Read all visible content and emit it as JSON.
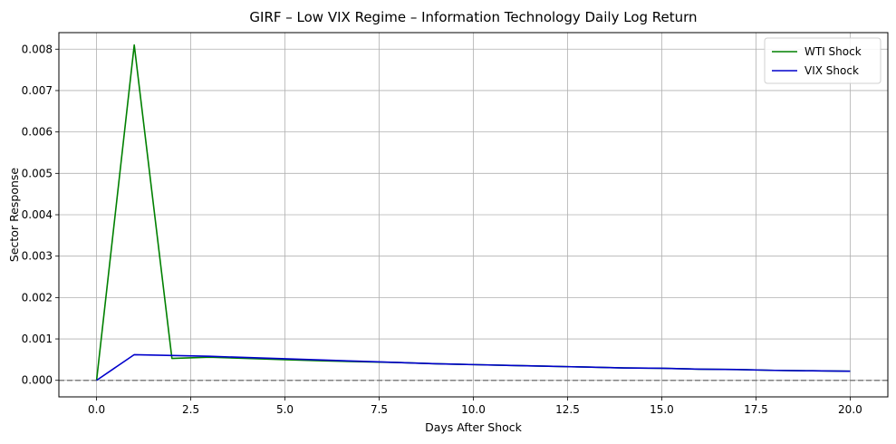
{
  "chart_data": {
    "type": "line",
    "title": "GIRF – Low VIX Regime – Information Technology Daily Log Return",
    "xlabel": "Days After Shock",
    "ylabel": "Sector Response",
    "xlim": [
      -1,
      21
    ],
    "ylim": [
      -0.0004,
      0.0084
    ],
    "x_ticks": [
      0.0,
      2.5,
      5.0,
      7.5,
      10.0,
      12.5,
      15.0,
      17.5,
      20.0
    ],
    "x_tick_labels": [
      "0.0",
      "2.5",
      "5.0",
      "7.5",
      "10.0",
      "12.5",
      "15.0",
      "17.5",
      "20.0"
    ],
    "y_ticks": [
      0.0,
      0.001,
      0.002,
      0.003,
      0.004,
      0.005,
      0.006,
      0.007,
      0.008
    ],
    "y_tick_labels": [
      "0.000",
      "0.001",
      "0.002",
      "0.003",
      "0.004",
      "0.005",
      "0.006",
      "0.007",
      "0.008"
    ],
    "grid": true,
    "legend_position": "top-right",
    "reference_line": {
      "y": 0,
      "style": "dashed",
      "color": "#808080"
    },
    "series": [
      {
        "name": "WTI Shock",
        "color": "#008000",
        "x": [
          0,
          1,
          2,
          3,
          4,
          5,
          6,
          7,
          8,
          9,
          10,
          11,
          12,
          13,
          14,
          15,
          16,
          17,
          18,
          19,
          20
        ],
        "values": [
          0.0,
          0.0081,
          0.00053,
          0.00056,
          0.00053,
          0.0005,
          0.00047,
          0.00045,
          0.00043,
          0.0004,
          0.00038,
          0.00036,
          0.00034,
          0.00032,
          0.0003,
          0.00029,
          0.00027,
          0.00026,
          0.00024,
          0.00023,
          0.00022
        ]
      },
      {
        "name": "VIX Shock",
        "color": "#0000cc",
        "x": [
          0,
          1,
          2,
          3,
          4,
          5,
          6,
          7,
          8,
          9,
          10,
          11,
          12,
          13,
          14,
          15,
          16,
          17,
          18,
          19,
          20
        ],
        "values": [
          0.0,
          0.00062,
          0.0006,
          0.00058,
          0.00055,
          0.00052,
          0.00049,
          0.00046,
          0.00043,
          0.0004,
          0.00038,
          0.00036,
          0.00034,
          0.00032,
          0.0003,
          0.00029,
          0.00027,
          0.00026,
          0.00024,
          0.00023,
          0.00022
        ]
      }
    ]
  }
}
